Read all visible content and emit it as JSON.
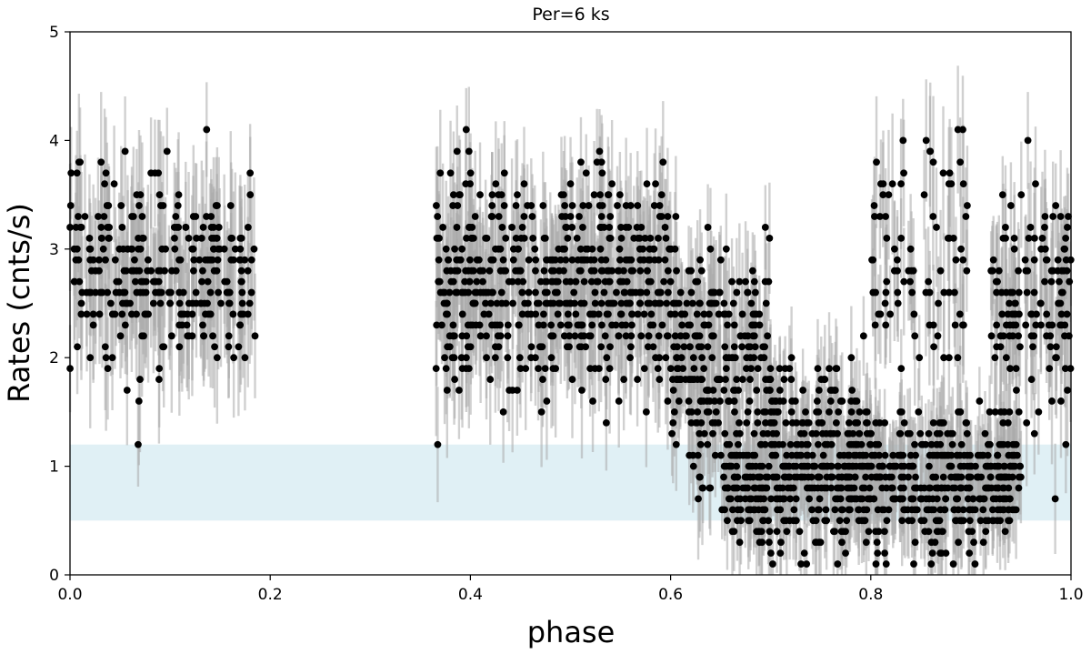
{
  "chart_data": {
    "type": "scatter",
    "title": "Per=6 ks",
    "xlabel": "phase",
    "ylabel": "Rates (cnts/s)",
    "xlim": [
      0.0,
      1.0
    ],
    "ylim": [
      0,
      5
    ],
    "x_ticks": [
      "0.0",
      "0.2",
      "0.4",
      "0.6",
      "0.8",
      "1.0"
    ],
    "y_ticks": [
      "0",
      "1",
      "2",
      "3",
      "4",
      "5"
    ],
    "grid": false,
    "shaded_band": {
      "y_from": 0.5,
      "y_to": 1.2,
      "color": "#add8e6"
    },
    "colors": {
      "points": "#000000",
      "error_bars": "#aaaaaa",
      "band": "#add8e6"
    },
    "segments": [
      {
        "x_from": 0.0,
        "x_to": 0.185,
        "points": 300,
        "mean": 2.8,
        "spread": 0.45,
        "err": 0.55
      },
      {
        "x_from": 0.365,
        "x_to": 0.6,
        "points": 560,
        "mean": 2.7,
        "spread": 0.5,
        "err": 0.5
      },
      {
        "x_from": 0.6,
        "x_to": 0.7,
        "points": 260,
        "mean": 2.0,
        "spread": 0.5,
        "err": 0.45
      },
      {
        "x_from": 0.65,
        "x_to": 0.95,
        "points": 700,
        "mean": 0.85,
        "spread": 0.3,
        "err": 0.35
      },
      {
        "x_from": 0.7,
        "x_to": 0.8,
        "points": 120,
        "mean": 1.4,
        "spread": 0.3,
        "err": 0.4
      },
      {
        "x_from": 0.8,
        "x_to": 0.9,
        "points": 90,
        "mean": 2.9,
        "spread": 0.5,
        "err": 0.5
      },
      {
        "x_from": 0.92,
        "x_to": 1.0,
        "points": 140,
        "mean": 2.5,
        "spread": 0.55,
        "err": 0.5
      }
    ]
  }
}
